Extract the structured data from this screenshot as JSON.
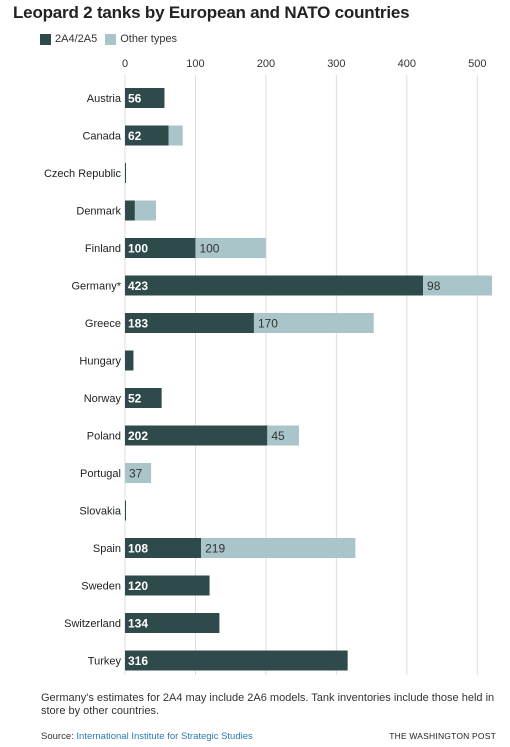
{
  "header": {
    "title": "Leopard 2 tanks by European and NATO countries"
  },
  "legend": [
    {
      "label": "2A4/2A5",
      "color": "#2f4a4a"
    },
    {
      "label": "Other types",
      "color": "#a9c5c9"
    }
  ],
  "chart_data": {
    "type": "bar",
    "orientation": "horizontal",
    "stacked": true,
    "title": "Leopard 2 tanks by European and NATO countries",
    "xlim": [
      0,
      520
    ],
    "xticks": [
      0,
      100,
      200,
      300,
      400,
      500
    ],
    "grid": true,
    "legend_position": "top-left",
    "categories": [
      "Austria",
      "Canada",
      "Czech Republic",
      "Denmark",
      "Finland",
      "Germany*",
      "Greece",
      "Hungary",
      "Norway",
      "Poland",
      "Portugal",
      "Slovakia",
      "Spain",
      "Sweden",
      "Switzerland",
      "Turkey"
    ],
    "series": [
      {
        "name": "2A4/2A5",
        "color": "#2f4a4a",
        "values": [
          56,
          62,
          1,
          14,
          100,
          423,
          183,
          12,
          52,
          202,
          0,
          1,
          108,
          120,
          134,
          316
        ],
        "labels": [
          "56",
          "62",
          "",
          "",
          "100",
          "423",
          "183",
          "",
          "52",
          "202",
          "",
          "",
          "108",
          "120",
          "134",
          "316"
        ]
      },
      {
        "name": "Other types",
        "color": "#a9c5c9",
        "values": [
          0,
          20,
          0,
          30,
          100,
          98,
          170,
          0,
          0,
          45,
          37,
          0,
          219,
          0,
          0,
          0
        ],
        "labels": [
          "",
          "",
          "",
          "",
          "100",
          "98",
          "170",
          "",
          "",
          "45",
          "37",
          "",
          "219",
          "",
          "",
          ""
        ]
      }
    ]
  },
  "footer": {
    "note": "Germany's estimates for 2A4 may include 2A6 models. Tank inventories include those held in store by other countries.",
    "source_prefix": "Source: ",
    "source_link": "International Institute for Strategic Studies",
    "credit": "THE WASHINGTON POST"
  }
}
